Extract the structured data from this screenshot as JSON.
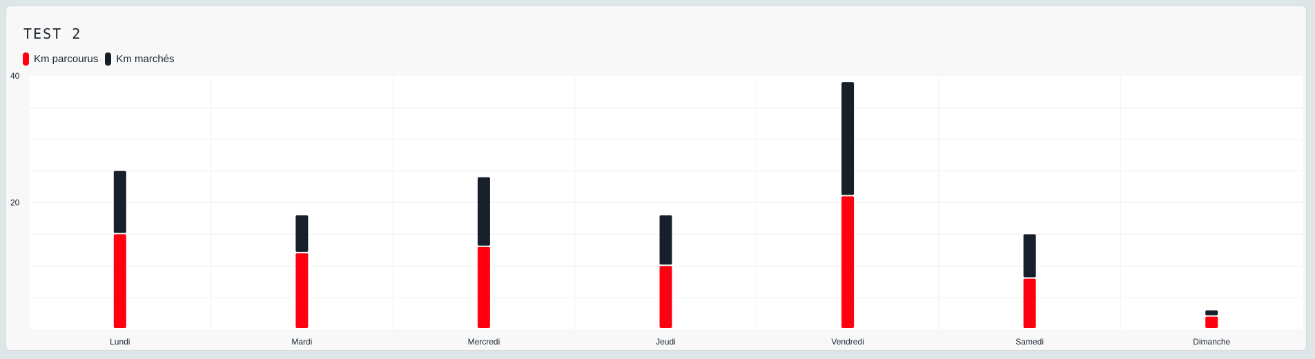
{
  "card": {
    "title": "TEST 2"
  },
  "legend": [
    {
      "label": "Km parcourus",
      "color": "#ff0010"
    },
    {
      "label": "Km marchés",
      "color": "#17202a"
    }
  ],
  "chart_data": {
    "type": "bar",
    "stacked": true,
    "categories": [
      "Lundi",
      "Mardi",
      "Mercredi",
      "Jeudi",
      "Vendredi",
      "Samedi",
      "Dimanche"
    ],
    "series": [
      {
        "name": "Km parcourus",
        "color": "#ff0010",
        "values": [
          15,
          12,
          13,
          10,
          21,
          8,
          2
        ]
      },
      {
        "name": "Km marchés",
        "color": "#17202a",
        "values": [
          10,
          6,
          11,
          8,
          18,
          7,
          1
        ]
      }
    ],
    "y_ticks": [
      20,
      40
    ],
    "ylim": [
      0,
      40
    ],
    "grid": true
  }
}
